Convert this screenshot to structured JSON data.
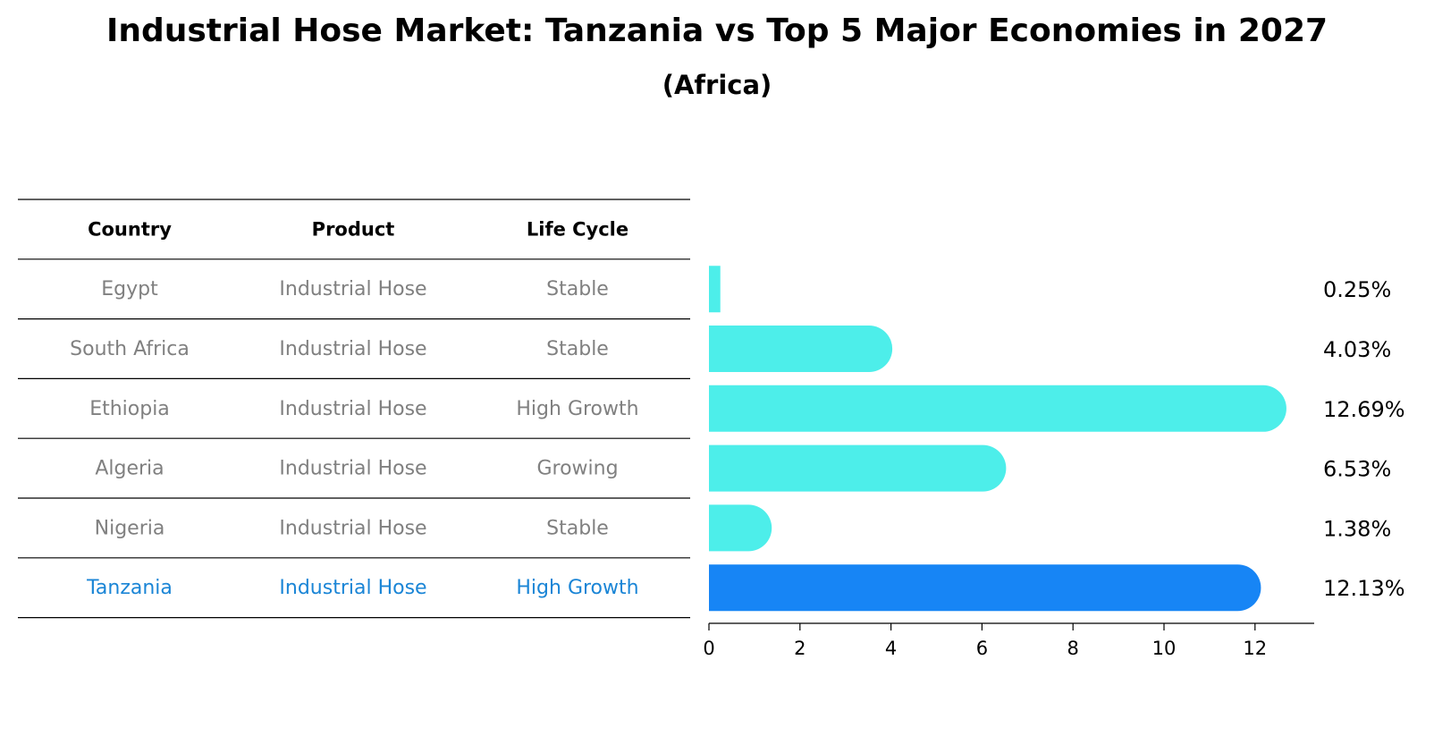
{
  "title": "Industrial Hose Market: Tanzania vs Top 5 Major Economies in 2027",
  "subtitle": "(Africa)",
  "table": {
    "headers": [
      "Country",
      "Product",
      "Life Cycle"
    ],
    "rows": [
      {
        "country": "Egypt",
        "product": "Industrial Hose",
        "life_cycle": "Stable",
        "highlight": false
      },
      {
        "country": "South Africa",
        "product": "Industrial Hose",
        "life_cycle": "Stable",
        "highlight": false
      },
      {
        "country": "Ethiopia",
        "product": "Industrial Hose",
        "life_cycle": "High Growth",
        "highlight": false
      },
      {
        "country": "Algeria",
        "product": "Industrial Hose",
        "life_cycle": "Growing",
        "highlight": false
      },
      {
        "country": "Nigeria",
        "product": "Industrial Hose",
        "life_cycle": "Stable",
        "highlight": false
      },
      {
        "country": "Tanzania",
        "product": "Industrial Hose",
        "life_cycle": "High Growth",
        "highlight": true
      }
    ]
  },
  "chart_data": {
    "type": "bar",
    "orientation": "horizontal",
    "categories": [
      "Egypt",
      "South Africa",
      "Ethiopia",
      "Algeria",
      "Nigeria",
      "Tanzania"
    ],
    "values": [
      0.25,
      4.03,
      12.69,
      6.53,
      1.38,
      12.13
    ],
    "value_labels": [
      "0.25%",
      "4.03%",
      "12.69%",
      "6.53%",
      "1.38%",
      "12.13%"
    ],
    "highlight_category": "Tanzania",
    "xlim": [
      0,
      13.3
    ],
    "xticks": [
      0,
      2,
      4,
      6,
      8,
      10,
      12
    ],
    "xlabel": "",
    "ylabel": "",
    "grid": false,
    "colors": {
      "bar": "#4deeea",
      "highlight": "#1785f5",
      "highlight_text": "#1a85d6",
      "muted_text": "#808080",
      "rule": "#000000"
    }
  }
}
